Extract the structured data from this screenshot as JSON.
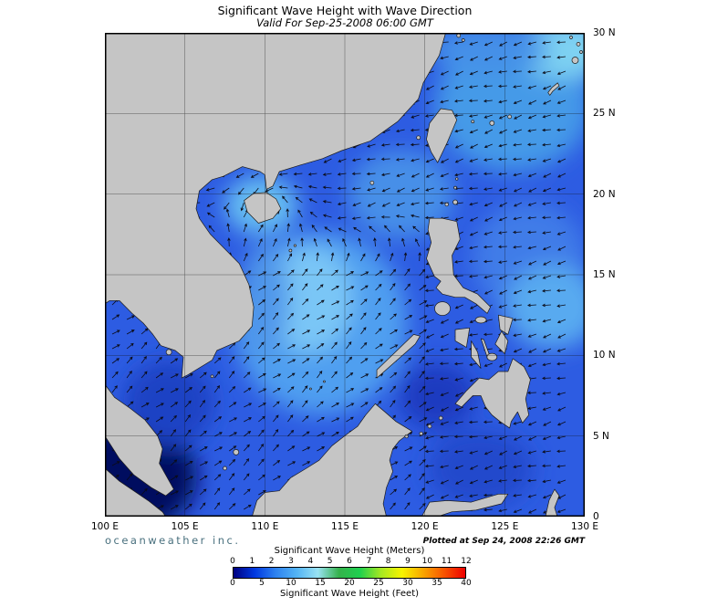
{
  "header": {
    "title": "Significant Wave Height with Wave Direction",
    "subtitle": "Valid For Sep-25-2008 06:00 GMT"
  },
  "axes": {
    "x_ticks": [
      "100 E",
      "105 E",
      "110 E",
      "115 E",
      "120 E",
      "125 E",
      "130 E"
    ],
    "y_ticks": [
      "30 N",
      "25 N",
      "20 N",
      "15 N",
      "10 N",
      "5 N",
      "0"
    ]
  },
  "colorbar": {
    "meters_title": "Significant Wave Height (Meters)",
    "feet_title": "Significant Wave Height (Feet)",
    "meters_ticks": [
      "0",
      "1",
      "2",
      "3",
      "4",
      "5",
      "6",
      "7",
      "8",
      "9",
      "10",
      "11",
      "12"
    ],
    "feet_ticks": [
      "0",
      "5",
      "10",
      "15",
      "20",
      "25",
      "30",
      "35",
      "40"
    ],
    "colors": [
      "#000080",
      "#0038e0",
      "#2e82f0",
      "#53b4f4",
      "#99e2f2",
      "#35b24c",
      "#1ed04e",
      "#a6e822",
      "#f8f400",
      "#f8a600",
      "#f85400",
      "#ee0000"
    ]
  },
  "footer": {
    "brand": "oceanweather inc.",
    "plotted": "Plotted at Sep 24, 2008 22:26 GMT"
  },
  "map": {
    "ocean_color": "#2d5ce2",
    "land_color": "#c5c5c5",
    "arrow_color": "#0b0b16"
  }
}
